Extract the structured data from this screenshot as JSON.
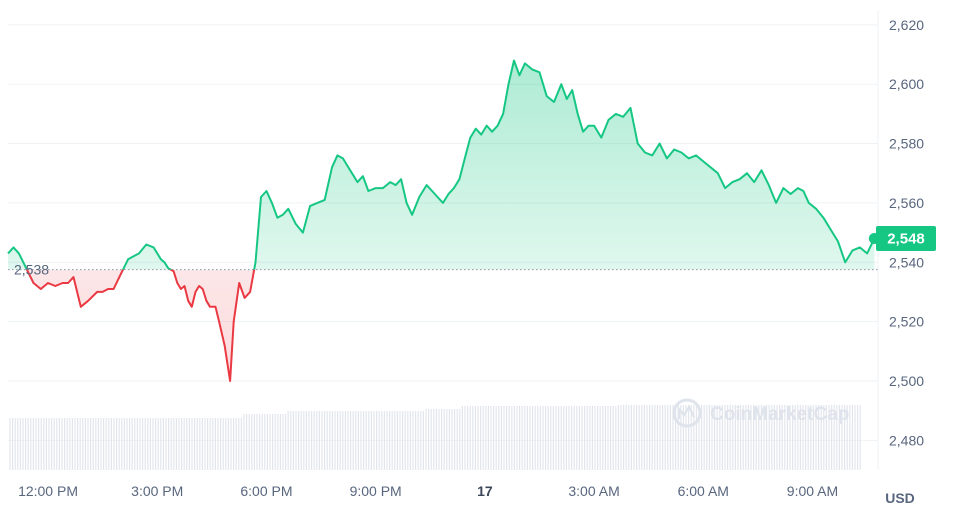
{
  "chart_data": {
    "type": "line",
    "currency": "USD",
    "watermark": "CoinMarketCap",
    "ylim": [
      2470,
      2625
    ],
    "yticks": [
      "2,620",
      "2,600",
      "2,580",
      "2,560",
      "2,540",
      "2,520",
      "2,500",
      "2,480"
    ],
    "ytick_values": [
      2620,
      2600,
      2580,
      2560,
      2540,
      2520,
      2500,
      2480
    ],
    "xticks": [
      "12:00 PM",
      "3:00 PM",
      "6:00 PM",
      "9:00 PM",
      "17",
      "3:00 AM",
      "6:00 AM",
      "9:00 AM"
    ],
    "xtick_hours": [
      12,
      15,
      18,
      21,
      24,
      27,
      30,
      33
    ],
    "x_unit": "hours since 00:00 of previous day",
    "x_range": [
      10.9,
      34.8
    ],
    "reference": {
      "value": 2537.5,
      "label": "2,538"
    },
    "current": {
      "value": 2548,
      "label": "2,548"
    },
    "colors": {
      "up": "#16c784",
      "down": "#ea3943",
      "grid": "#eff2f5",
      "axis": "#58667e"
    },
    "grid": true,
    "series": [
      {
        "x": [
          10.9,
          11.05,
          11.2,
          11.6,
          11.8,
          12.0,
          12.2,
          12.4,
          12.55,
          12.7,
          12.9,
          13.1,
          13.35,
          13.5,
          13.65,
          13.8,
          14.0,
          14.2,
          14.35,
          14.5,
          14.7,
          14.9,
          15.1,
          15.2,
          15.3,
          15.45,
          15.55,
          15.65,
          15.75,
          15.85,
          15.95,
          16.05,
          16.15,
          16.25,
          16.35,
          16.45,
          16.6,
          16.7,
          16.85,
          17.0,
          17.1,
          17.25,
          17.4,
          17.55,
          17.7,
          17.85,
          18.0,
          18.15,
          18.3,
          18.45,
          18.6,
          18.8,
          19.0,
          19.2,
          19.4,
          19.6,
          19.8,
          19.95,
          20.1,
          20.3,
          20.5,
          20.65,
          20.8,
          21.0,
          21.2,
          21.4,
          21.55,
          21.7,
          21.85,
          22.0,
          22.2,
          22.4,
          22.55,
          22.7,
          22.85,
          23.0,
          23.15,
          23.3,
          23.45,
          23.6,
          23.75,
          23.9,
          24.05,
          24.2,
          24.35,
          24.5,
          24.65,
          24.8,
          24.95,
          25.1,
          25.3,
          25.5,
          25.7,
          25.9,
          26.1,
          26.25,
          26.4,
          26.55,
          26.7,
          26.85,
          27.0,
          27.2,
          27.4,
          27.6,
          27.8,
          28.0,
          28.2,
          28.4,
          28.6,
          28.8,
          29.0,
          29.2,
          29.4,
          29.6,
          29.8,
          30.0,
          30.2,
          30.4,
          30.6,
          30.8,
          31.0,
          31.2,
          31.4,
          31.6,
          31.8,
          32.0,
          32.2,
          32.4,
          32.6,
          32.75,
          32.9,
          33.1,
          33.3,
          33.5,
          33.7,
          33.9,
          34.1,
          34.3,
          34.5,
          34.7
        ],
        "y": [
          2543,
          2545,
          2543,
          2533,
          2531,
          2533,
          2532,
          2533,
          2533,
          2535,
          2525,
          2527,
          2530,
          2530,
          2531,
          2531,
          2536,
          2541,
          2542,
          2543,
          2546,
          2545,
          2541,
          2540,
          2538,
          2537,
          2533,
          2531,
          2532,
          2527,
          2525,
          2530,
          2532,
          2531,
          2527,
          2525,
          2525,
          2520,
          2512,
          2500,
          2520,
          2533,
          2528,
          2530,
          2540,
          2562,
          2564,
          2560,
          2555,
          2556,
          2558,
          2553,
          2550,
          2559,
          2560,
          2561,
          2572,
          2576,
          2575,
          2571,
          2567,
          2569,
          2564,
          2565,
          2565,
          2567,
          2566,
          2568,
          2560,
          2556,
          2562,
          2566,
          2564,
          2562,
          2560,
          2563,
          2565,
          2568,
          2575,
          2582,
          2585,
          2583,
          2586,
          2584,
          2586,
          2590,
          2600,
          2608,
          2603,
          2607,
          2605,
          2604,
          2596,
          2594,
          2600,
          2595,
          2598,
          2590,
          2584,
          2586,
          2586,
          2582,
          2588,
          2590,
          2589,
          2592,
          2580,
          2577,
          2576,
          2580,
          2575,
          2578,
          2577,
          2575,
          2576,
          2574,
          2572,
          2570,
          2565,
          2567,
          2568,
          2570,
          2567,
          2571,
          2566,
          2560,
          2565,
          2563,
          2565,
          2564,
          2560,
          2558,
          2555,
          2551,
          2547,
          2540,
          2544,
          2545,
          2543,
          2548
        ]
      }
    ]
  }
}
